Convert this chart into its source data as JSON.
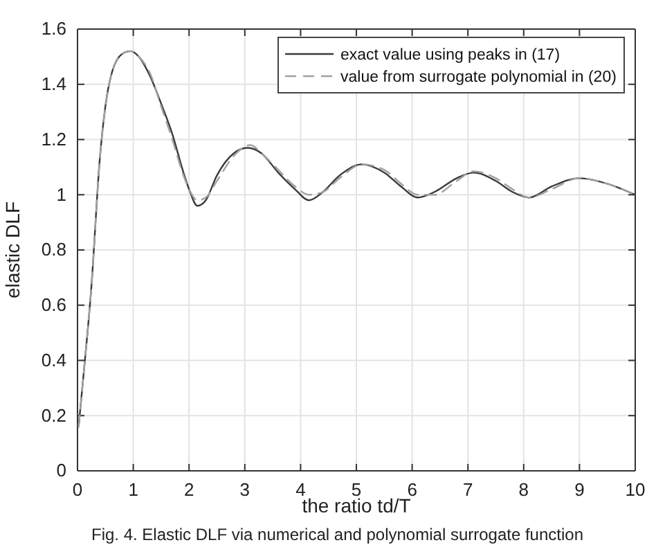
{
  "chart_data": {
    "type": "line",
    "xlabel": "the ratio td/T",
    "ylabel": "elastic DLF",
    "annotations": [
      "Fig. 4. Elastic DLF via numerical and polynomial surrogate function"
    ],
    "xlim": [
      0,
      10
    ],
    "ylim": [
      0,
      1.6
    ],
    "xticks": [
      0,
      1,
      2,
      3,
      4,
      5,
      6,
      7,
      8,
      9,
      10
    ],
    "yticks": [
      0,
      0.2,
      0.4,
      0.6,
      0.8,
      1,
      1.2,
      1.4,
      1.6
    ],
    "grid": true,
    "legend": "top right",
    "marker": "none",
    "series": [
      {
        "name": "exact value using peaks in  (17)",
        "color": "#3a3a3a",
        "line_style": "solid",
        "x": [
          0.02,
          0.1,
          0.25,
          0.4,
          0.5,
          0.6,
          0.8,
          0.95,
          1.1,
          1.3,
          1.5,
          1.7,
          1.9,
          2.0,
          2.15,
          2.3,
          2.5,
          2.8,
          3.05,
          3.3,
          3.6,
          3.9,
          4.15,
          4.4,
          4.7,
          5.1,
          5.5,
          5.8,
          6.1,
          6.4,
          6.8,
          7.1,
          7.5,
          7.8,
          8.1,
          8.5,
          9.0,
          9.5,
          10
        ],
        "values": [
          0.16,
          0.33,
          0.67,
          1.13,
          1.32,
          1.43,
          1.51,
          1.52,
          1.5,
          1.43,
          1.33,
          1.22,
          1.08,
          1.02,
          0.96,
          0.98,
          1.07,
          1.15,
          1.17,
          1.15,
          1.08,
          1.02,
          0.98,
          1.01,
          1.07,
          1.11,
          1.08,
          1.03,
          0.99,
          1.01,
          1.06,
          1.08,
          1.05,
          1.01,
          0.99,
          1.03,
          1.06,
          1.04,
          1.0
        ]
      },
      {
        "name": "value from surrogate polynomial in (20)",
        "color": "#a0a0a0",
        "line_style": "dashed",
        "x": [
          0.02,
          0.1,
          0.25,
          0.4,
          0.5,
          0.6,
          0.8,
          0.95,
          1.1,
          1.3,
          1.5,
          1.7,
          1.9,
          2.0,
          2.15,
          2.3,
          2.5,
          2.8,
          3.1,
          3.3,
          3.6,
          3.9,
          4.15,
          4.4,
          4.7,
          5.1,
          5.5,
          5.8,
          6.1,
          6.4,
          6.8,
          7.1,
          7.5,
          7.8,
          8.1,
          8.5,
          9.0,
          9.5,
          10
        ],
        "values": [
          0.16,
          0.33,
          0.67,
          1.13,
          1.32,
          1.43,
          1.51,
          1.52,
          1.5,
          1.44,
          1.32,
          1.2,
          1.07,
          1.02,
          0.98,
          0.99,
          1.05,
          1.14,
          1.18,
          1.15,
          1.09,
          1.03,
          1.0,
          1.01,
          1.06,
          1.11,
          1.09,
          1.04,
          1.0,
          1.0,
          1.05,
          1.085,
          1.06,
          1.02,
          0.99,
          1.02,
          1.06,
          1.04,
          1.0
        ]
      }
    ]
  }
}
